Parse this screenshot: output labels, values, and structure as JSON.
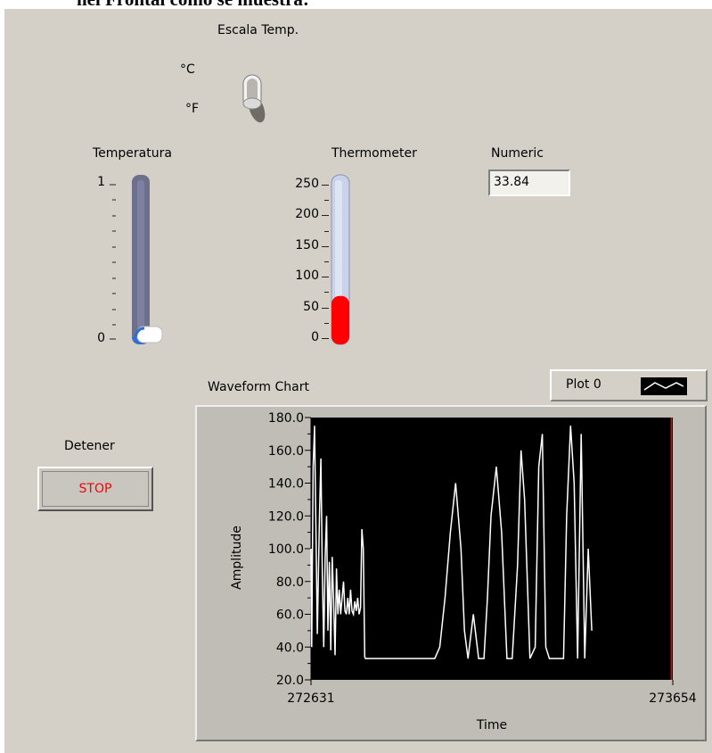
{
  "doc_heading": "nel Frontal como se muestra:",
  "switch": {
    "title": "Escala Temp.",
    "option_top": "°C",
    "option_bottom": "°F",
    "state": "°C"
  },
  "temperatura": {
    "label": "Temperatura",
    "ticks": [
      "1",
      "0"
    ],
    "value": 0
  },
  "thermometer": {
    "label": "Thermometer",
    "ticks": [
      "250",
      "200",
      "150",
      "100",
      "50",
      "0"
    ],
    "value": 33.84,
    "max": 250,
    "fill_color": "#ff0000"
  },
  "numeric": {
    "label": "Numeric",
    "value": "33.84"
  },
  "stop_control": {
    "label": "Detener",
    "button": "STOP"
  },
  "legend": {
    "plot_name": "Plot 0"
  },
  "chart_data": {
    "type": "line",
    "title": "Waveform Chart",
    "xlabel": "Time",
    "ylabel": "Amplitude",
    "x_ticks": [
      "272631",
      "273654"
    ],
    "y_ticks": [
      "180.0",
      "160.0",
      "140.0",
      "120.0",
      "100.0",
      "80.0",
      "60.0",
      "40.0",
      "20.0"
    ],
    "ylim": [
      20,
      180
    ],
    "xlim": [
      272631,
      273654
    ],
    "cursor_x": 273650,
    "series": [
      {
        "name": "Plot 0",
        "color": "#ffffff",
        "x": [
          272631,
          272633,
          272637,
          272641,
          272645,
          272649,
          272655,
          272659,
          272663,
          272667,
          272671,
          272675,
          272679,
          272683,
          272687,
          272691,
          272695,
          272699,
          272703,
          272707,
          272711,
          272715,
          272719,
          272723,
          272727,
          272731,
          272735,
          272739,
          272743,
          272747,
          272751,
          272755,
          272759,
          272763,
          272767,
          272771,
          272775,
          272779,
          272783,
          272785,
          272787,
          272789,
          272791,
          272793,
          272800,
          272900,
          272950,
          272981,
          272995,
          273010,
          273025,
          273040,
          273055,
          273065,
          273075,
          273090,
          273105,
          273120,
          273130,
          273140,
          273155,
          273170,
          273185,
          273200,
          273215,
          273225,
          273235,
          273250,
          273265,
          273275,
          273285,
          273295,
          273305,
          273345,
          273354,
          273365,
          273375,
          273385,
          273395,
          273405,
          273415,
          273425
        ],
        "y": [
          100,
          40,
          150,
          175,
          110,
          48,
          120,
          155,
          85,
          40,
          95,
          120,
          50,
          92,
          38,
          95,
          68,
          35,
          88,
          60,
          75,
          60,
          70,
          80,
          62,
          60,
          70,
          60,
          75,
          62,
          60,
          68,
          62,
          70,
          60,
          64,
          112,
          100,
          34,
          33,
          33,
          33,
          33,
          33,
          33,
          33,
          33,
          33,
          40,
          70,
          110,
          140,
          100,
          50,
          33,
          60,
          33,
          33,
          70,
          120,
          150,
          110,
          33,
          33,
          90,
          160,
          130,
          33,
          40,
          150,
          170,
          40,
          33,
          33,
          120,
          175,
          140,
          33,
          170,
          33,
          100,
          50
        ]
      }
    ]
  }
}
